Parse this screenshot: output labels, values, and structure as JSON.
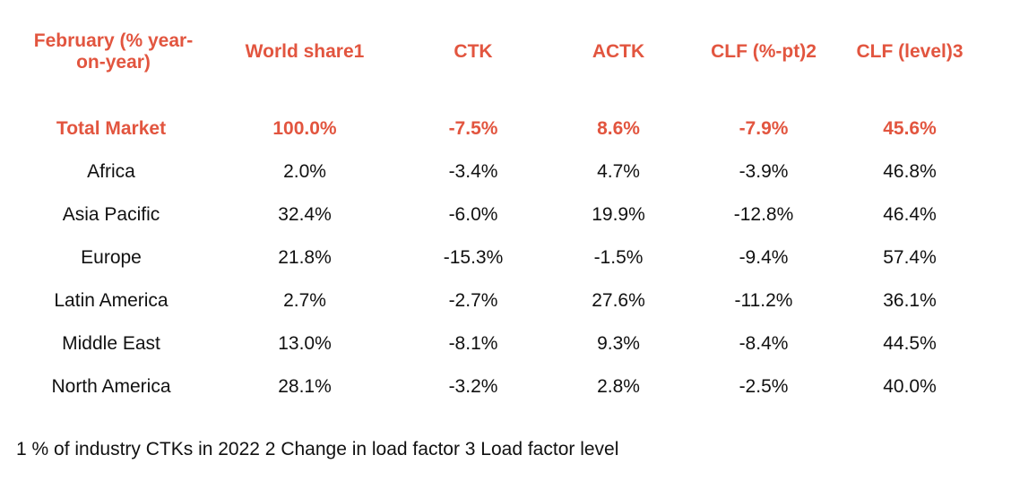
{
  "chart_data": {
    "type": "table",
    "columns": [
      "February (% year-on-year)",
      "World share1",
      "CTK",
      "ACTK",
      "CLF (%-pt)2",
      "CLF (level)3"
    ],
    "header_first_lines": [
      "February (% year-",
      "on-year)"
    ],
    "rows": [
      {
        "region": "Total Market",
        "world_share": "100.0%",
        "ctk": "-7.5%",
        "actk": "8.6%",
        "clf_pt": "-7.9%",
        "clf_level": "45.6%",
        "highlight": true
      },
      {
        "region": "Africa",
        "world_share": "2.0%",
        "ctk": "-3.4%",
        "actk": "4.7%",
        "clf_pt": "-3.9%",
        "clf_level": "46.8%"
      },
      {
        "region": "Asia Pacific",
        "world_share": "32.4%",
        "ctk": "-6.0%",
        "actk": "19.9%",
        "clf_pt": "-12.8%",
        "clf_level": "46.4%"
      },
      {
        "region": "Europe",
        "world_share": "21.8%",
        "ctk": "-15.3%",
        "actk": "-1.5%",
        "clf_pt": "-9.4%",
        "clf_level": "57.4%"
      },
      {
        "region": "Latin America",
        "world_share": "2.7%",
        "ctk": "-2.7%",
        "actk": "27.6%",
        "clf_pt": "-11.2%",
        "clf_level": "36.1%"
      },
      {
        "region": "Middle East",
        "world_share": "13.0%",
        "ctk": "-8.1%",
        "actk": "9.3%",
        "clf_pt": "-8.4%",
        "clf_level": "44.5%"
      },
      {
        "region": "North America",
        "world_share": "28.1%",
        "ctk": "-3.2%",
        "actk": "2.8%",
        "clf_pt": "-2.5%",
        "clf_level": "40.0%"
      }
    ],
    "footnote": "1 % of industry CTKs in 2022  2 Change in load factor  3 Load factor level",
    "accent_color": "#e2553f"
  }
}
